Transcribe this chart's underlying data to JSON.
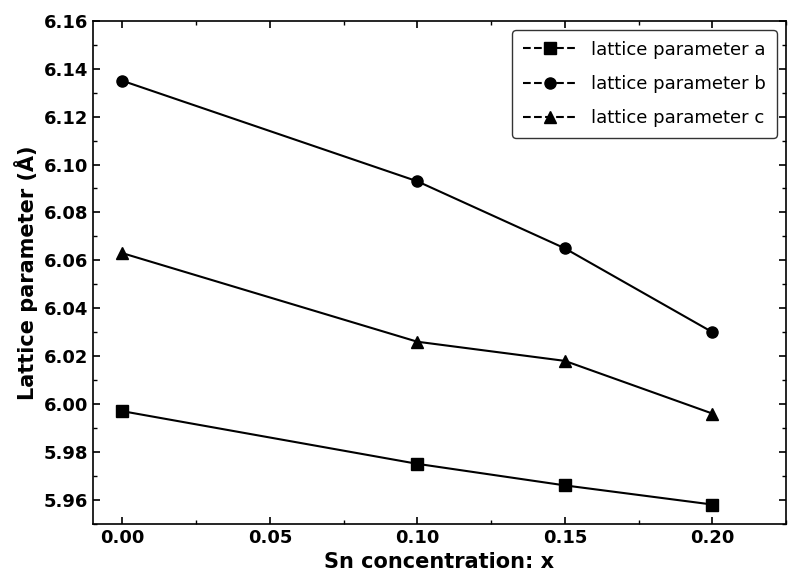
{
  "x": [
    0.0,
    0.1,
    0.15,
    0.2
  ],
  "lattice_a": [
    5.997,
    5.975,
    5.966,
    5.958
  ],
  "lattice_b": [
    6.135,
    6.093,
    6.065,
    6.03
  ],
  "lattice_c": [
    6.063,
    6.026,
    6.018,
    5.996
  ],
  "xlabel": "Sn concentration: x",
  "ylabel": "Lattice parameter (Å)",
  "xlim": [
    -0.01,
    0.225
  ],
  "ylim": [
    5.95,
    6.16
  ],
  "yticks": [
    5.96,
    5.98,
    6.0,
    6.02,
    6.04,
    6.06,
    6.08,
    6.1,
    6.12,
    6.14,
    6.16
  ],
  "xticks": [
    0.0,
    0.05,
    0.1,
    0.15,
    0.2
  ],
  "legend_a": "lattice parameter a",
  "legend_b": "lattice parameter b",
  "legend_c": "lattice parameter c",
  "line_color": "black",
  "marker_a": "s",
  "marker_b": "o",
  "marker_c": "^",
  "markersize": 8,
  "linewidth": 1.5,
  "bg_color": "#ffffff",
  "legend_fontsize": 13,
  "axis_label_fontsize": 15,
  "tick_fontsize": 13
}
